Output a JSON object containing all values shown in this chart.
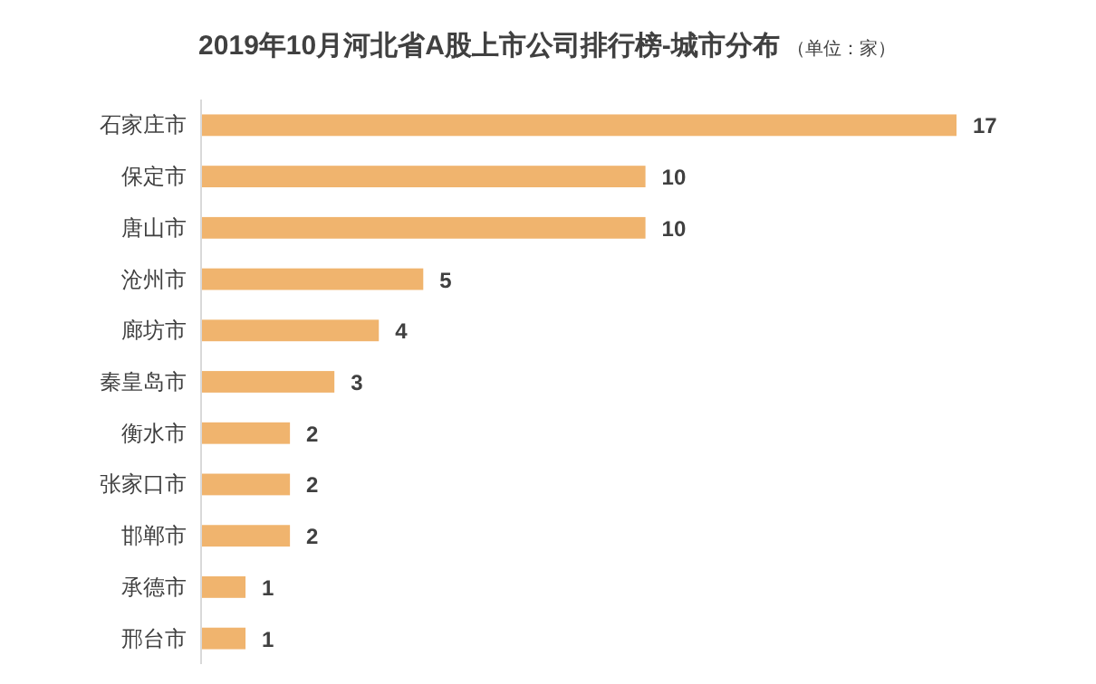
{
  "chart_data": {
    "type": "bar",
    "orientation": "horizontal",
    "title": "2019年10月河北省A股上市公司排行榜-城市分布",
    "subtitle": "（单位：家）",
    "categories": [
      "石家庄市",
      "保定市",
      "唐山市",
      "沧州市",
      "廊坊市",
      "秦皇岛市",
      "衡水市",
      "张家口市",
      "邯郸市",
      "承德市",
      "邢台市"
    ],
    "values": [
      17,
      10,
      10,
      5,
      4,
      3,
      2,
      2,
      2,
      1,
      1
    ],
    "color": "#f0b46e",
    "data_labels": true
  }
}
